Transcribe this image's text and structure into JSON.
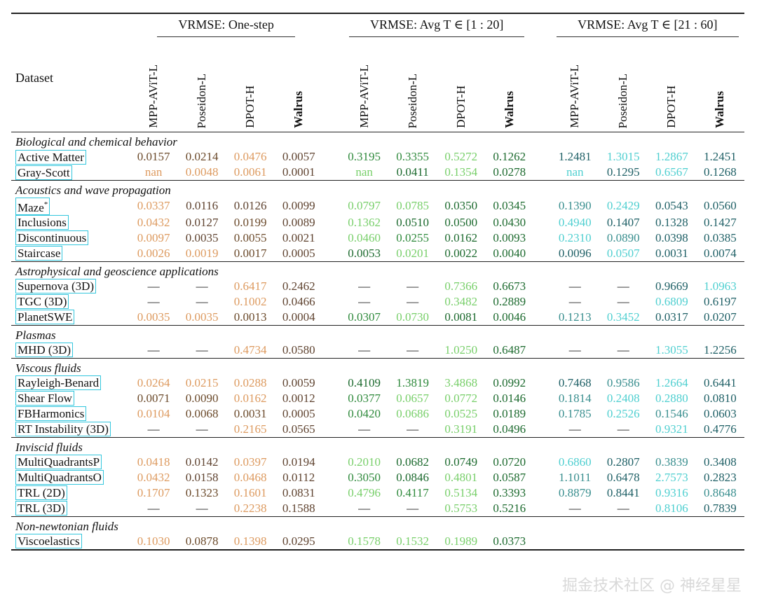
{
  "header": {
    "dataset_label": "Dataset",
    "group1": "VRMSE: One-step",
    "group2": "VRMSE: Avg T ∈ [1 : 20]",
    "group3": "VRMSE: Avg T ∈ [21 : 60]",
    "models": [
      "MPP-AViT-L",
      "Poseidon-L",
      "DPOT-H",
      "Walrus"
    ]
  },
  "sections": [
    {
      "title": "Biological and chemical behavior",
      "rows": [
        {
          "name": "Active Matter",
          "sup": "",
          "vals": [
            "0.0157",
            "0.0214",
            "0.0476",
            "0.0057",
            "0.3195",
            "0.3355",
            "0.5272",
            "0.1262",
            "1.2481",
            "1.3015",
            "1.2867",
            "1.2451"
          ],
          "bold": [
            3,
            7,
            11
          ]
        },
        {
          "name": "Gray-Scott",
          "sup": "",
          "vals": [
            "nan",
            "0.0048",
            "0.0061",
            "0.0001",
            "nan",
            "0.0411",
            "0.1354",
            "0.0278",
            "nan",
            "0.1295",
            "0.6567",
            "0.1268"
          ],
          "bold": [
            3,
            7,
            11
          ]
        }
      ]
    },
    {
      "title": "Acoustics and wave propagation",
      "rows": [
        {
          "name": "Maze",
          "sup": "*",
          "vals": [
            "0.0337",
            "0.0116",
            "0.0126",
            "0.0099",
            "0.0797",
            "0.0785",
            "0.0350",
            "0.0345",
            "0.1390",
            "0.2429",
            "0.0543",
            "0.0560"
          ],
          "bold": [
            3,
            7,
            10
          ]
        },
        {
          "name": "Inclusions",
          "sup": "",
          "vals": [
            "0.0432",
            "0.0127",
            "0.0199",
            "0.0089",
            "0.1362",
            "0.0510",
            "0.0500",
            "0.0430",
            "0.4940",
            "0.1407",
            "0.1328",
            "0.1427"
          ],
          "bold": [
            3,
            7,
            10
          ]
        },
        {
          "name": "Discontinuous",
          "sup": "",
          "vals": [
            "0.0097",
            "0.0035",
            "0.0055",
            "0.0021",
            "0.0460",
            "0.0255",
            "0.0162",
            "0.0093",
            "0.2310",
            "0.0890",
            "0.0398",
            "0.0385"
          ],
          "bold": [
            3,
            7,
            11
          ]
        },
        {
          "name": "Staircase",
          "sup": "",
          "vals": [
            "0.0026",
            "0.0019",
            "0.0017",
            "0.0005",
            "0.0053",
            "0.0201",
            "0.0022",
            "0.0040",
            "0.0096",
            "0.0507",
            "0.0031",
            "0.0074"
          ],
          "bold": [
            3,
            6,
            10
          ]
        }
      ]
    },
    {
      "title": "Astrophysical and geoscience applications",
      "rows": [
        {
          "name": "Supernova (3D)",
          "sup": "",
          "vals": [
            "—",
            "—",
            "0.6417",
            "0.2462",
            "—",
            "—",
            "0.7366",
            "0.6673",
            "—",
            "—",
            "0.9669",
            "1.0963"
          ],
          "bold": [
            3,
            7,
            10
          ]
        },
        {
          "name": "TGC (3D)",
          "sup": "",
          "vals": [
            "—",
            "—",
            "0.1002",
            "0.0466",
            "—",
            "—",
            "0.3482",
            "0.2889",
            "—",
            "—",
            "0.6809",
            "0.6197"
          ],
          "bold": [
            3,
            7,
            11
          ]
        },
        {
          "name": "PlanetSWE",
          "sup": "",
          "vals": [
            "0.0035",
            "0.0035",
            "0.0013",
            "0.0004",
            "0.0307",
            "0.0730",
            "0.0081",
            "0.0046",
            "0.1213",
            "0.3452",
            "0.0317",
            "0.0207"
          ],
          "bold": [
            3,
            7,
            11
          ]
        }
      ]
    },
    {
      "title": "Plasmas",
      "rows": [
        {
          "name": "MHD (3D)",
          "sup": "",
          "vals": [
            "—",
            "—",
            "0.4734",
            "0.0580",
            "—",
            "—",
            "1.0250",
            "0.6487",
            "—",
            "—",
            "1.3055",
            "1.2256"
          ],
          "bold": [
            3,
            7,
            11
          ]
        }
      ]
    },
    {
      "title": "Viscous fluids",
      "rows": [
        {
          "name": "Rayleigh-Benard",
          "sup": "",
          "vals": [
            "0.0264",
            "0.0215",
            "0.0288",
            "0.0059",
            "0.4109",
            "1.3819",
            "3.4868",
            "0.0992",
            "0.7468",
            "0.9586",
            "1.2664",
            "0.6441"
          ],
          "bold": [
            3,
            7,
            11
          ]
        },
        {
          "name": "Shear Flow",
          "sup": "",
          "vals": [
            "0.0071",
            "0.0090",
            "0.0162",
            "0.0012",
            "0.0377",
            "0.0657",
            "0.0772",
            "0.0146",
            "0.1814",
            "0.2408",
            "0.2880",
            "0.0810"
          ],
          "bold": [
            3,
            7,
            11
          ]
        },
        {
          "name": "FBHarmonics",
          "sup": "",
          "vals": [
            "0.0104",
            "0.0068",
            "0.0031",
            "0.0005",
            "0.0420",
            "0.0686",
            "0.0525",
            "0.0189",
            "0.1785",
            "0.2526",
            "0.1546",
            "0.0603"
          ],
          "bold": [
            3,
            7,
            11
          ]
        },
        {
          "name": "RT Instability (3D)",
          "sup": "",
          "vals": [
            "—",
            "—",
            "0.2165",
            "0.0565",
            "—",
            "—",
            "0.3191",
            "0.0496",
            "—",
            "—",
            "0.9321",
            "0.4776"
          ],
          "bold": [
            3,
            7,
            11
          ]
        }
      ]
    },
    {
      "title": "Inviscid fluids",
      "rows": [
        {
          "name": "MultiQuadrantsP",
          "sup": "",
          "vals": [
            "0.0418",
            "0.0142",
            "0.0397",
            "0.0194",
            "0.2010",
            "0.0682",
            "0.0749",
            "0.0720",
            "0.6860",
            "0.2807",
            "0.3839",
            "0.3408"
          ],
          "bold": [
            1,
            5,
            9
          ]
        },
        {
          "name": "MultiQuadrantsO",
          "sup": "",
          "vals": [
            "0.0432",
            "0.0158",
            "0.0468",
            "0.0112",
            "0.3050",
            "0.0846",
            "0.4801",
            "0.0587",
            "1.1011",
            "0.6478",
            "2.7573",
            "0.2823"
          ],
          "bold": [
            3,
            7,
            11
          ]
        },
        {
          "name": "TRL (2D)",
          "sup": "",
          "vals": [
            "0.1707",
            "0.1323",
            "0.1601",
            "0.0831",
            "0.4796",
            "0.4117",
            "0.5134",
            "0.3393",
            "0.8879",
            "0.8441",
            "0.9316",
            "0.8648"
          ],
          "bold": [
            3,
            7,
            9
          ]
        },
        {
          "name": "TRL (3D)",
          "sup": "",
          "vals": [
            "—",
            "—",
            "0.2238",
            "0.1588",
            "—",
            "—",
            "0.5753",
            "0.5216",
            "—",
            "—",
            "0.8106",
            "0.7839"
          ],
          "bold": [
            3,
            7,
            11
          ]
        }
      ]
    },
    {
      "title": "Non-newtonian fluids",
      "rows": [
        {
          "name": "Viscoelastics",
          "sup": "",
          "vals": [
            "0.1030",
            "0.0878",
            "0.1398",
            "0.0295",
            "0.1578",
            "0.1532",
            "0.1989",
            "0.0373",
            "",
            "",
            "",
            ""
          ],
          "bold": [
            3,
            7
          ]
        }
      ]
    }
  ],
  "watermark": "掘金技术社区 @ 神经星星"
}
